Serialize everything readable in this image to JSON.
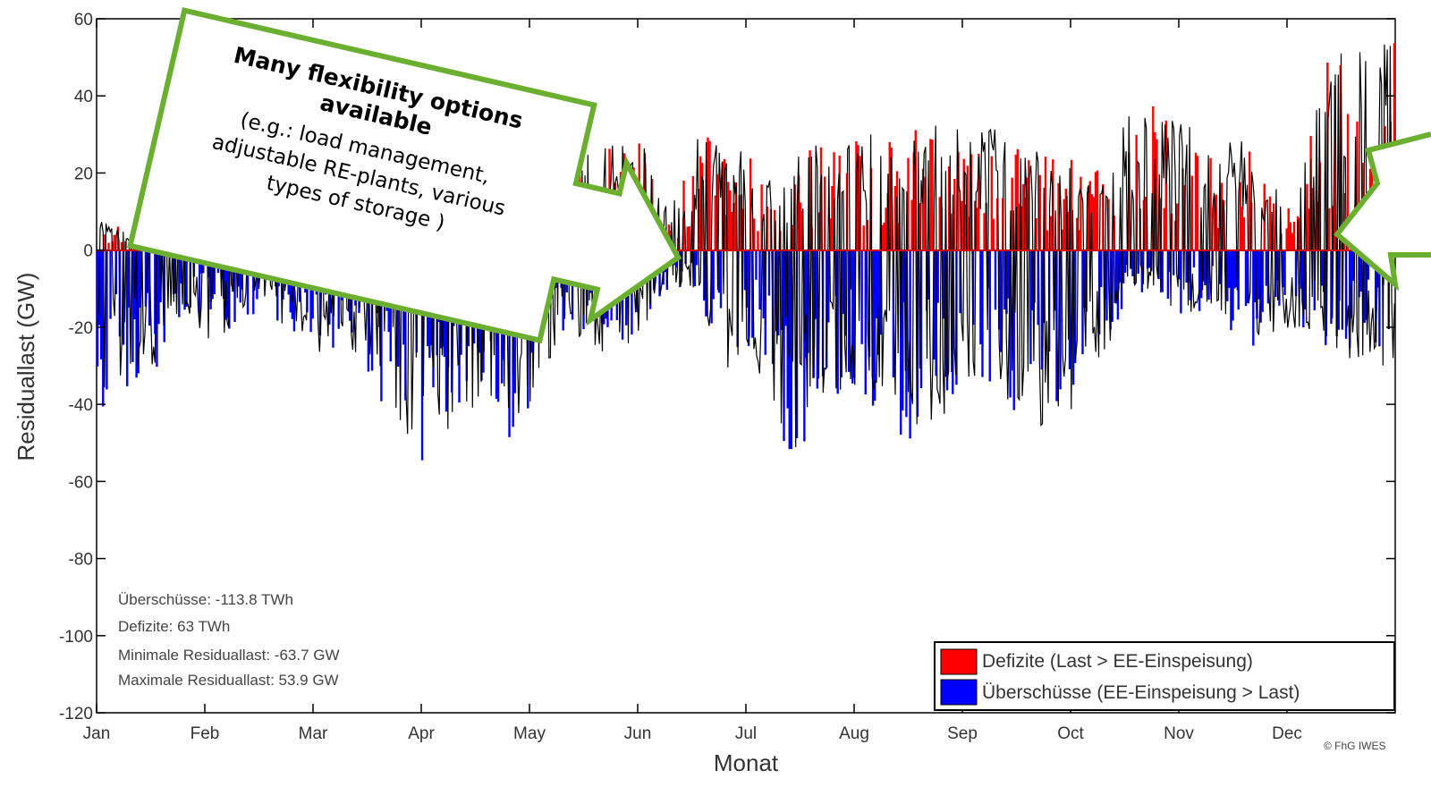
{
  "chart_data": {
    "type": "bar",
    "ylabel": "Residuallast (GW)",
    "xlabel": "Monat",
    "ylim": [
      -120,
      60
    ],
    "yticks": [
      60,
      40,
      20,
      0,
      -20,
      -40,
      -60,
      -80,
      -100,
      -120
    ],
    "months": [
      "Jan",
      "Feb",
      "Mar",
      "Apr",
      "May",
      "Jun",
      "Jul",
      "Aug",
      "Sep",
      "Oct",
      "Nov",
      "Dec"
    ],
    "grid": false,
    "legend_position": "bottom-right",
    "legend": [
      {
        "label": "Defizite (Last > EE-Einspeisung)",
        "color": "#ff0000"
      },
      {
        "label": "Überschüsse (EE-Einspeisung > Last)",
        "color": "#0000ff"
      }
    ],
    "stats": [
      "Überschüsse: -113.8 TWh",
      "Defizite: 63 TWh",
      "Minimale Residuallast: -63.7 GW",
      "Maximale Residuallast: 53.9 GW"
    ],
    "series_approx_weekly": {
      "name": "Residuallast",
      "x_month": [
        0.05,
        0.3,
        0.55,
        0.8,
        1.05,
        1.3,
        1.55,
        1.8,
        2.05,
        2.3,
        2.55,
        2.8,
        3.05,
        3.3,
        3.55,
        3.8,
        4.05,
        4.3,
        4.55,
        4.8,
        5.05,
        5.3,
        5.55,
        5.8,
        6.05,
        6.3,
        6.55,
        6.8,
        7.05,
        7.3,
        7.55,
        7.8,
        8.05,
        8.3,
        8.55,
        8.8,
        9.05,
        9.3,
        9.55,
        9.8,
        10.05,
        10.3,
        10.55,
        10.8,
        11.05,
        11.3,
        11.55,
        11.8
      ],
      "y_min": [
        -45,
        -35,
        -35,
        -15,
        -25,
        -20,
        -15,
        -22,
        -28,
        -25,
        -35,
        -50,
        -58,
        -45,
        -40,
        -50,
        -38,
        -22,
        -25,
        -30,
        -20,
        -10,
        -10,
        -35,
        -25,
        -50,
        -55,
        -40,
        -38,
        -45,
        -55,
        -45,
        -35,
        -40,
        -45,
        -50,
        -40,
        -28,
        -12,
        -12,
        -18,
        -15,
        -25,
        -25,
        -20,
        -25,
        -30,
        -30
      ],
      "y_max": [
        8,
        5,
        2,
        5,
        8,
        3,
        5,
        3,
        8,
        15,
        15,
        10,
        20,
        22,
        25,
        20,
        27,
        30,
        25,
        28,
        28,
        10,
        30,
        30,
        25,
        15,
        28,
        28,
        30,
        30,
        32,
        35,
        30,
        32,
        30,
        25,
        25,
        20,
        42,
        38,
        38,
        28,
        30,
        20,
        10,
        48,
        52,
        55
      ]
    }
  },
  "annotations": {
    "callout_title": "Many flexibility options available",
    "callout_body_lines": [
      "(e.g.: load management,",
      "adjustable RE-plants, various",
      "types of storage )"
    ]
  },
  "colors": {
    "deficit": "#ff0000",
    "surplus": "#0000ff",
    "line": "#000000",
    "callout_border": "#6aaf2f"
  },
  "copyright": "© FhG IWES"
}
